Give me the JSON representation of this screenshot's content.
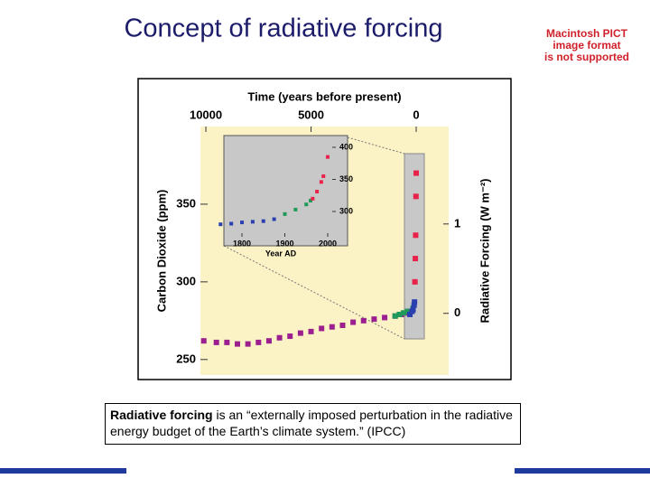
{
  "title": "Concept of radiative forcing",
  "placeholder": [
    "Macintosh PICT",
    "image format",
    "is not supported"
  ],
  "caption": {
    "bold": "Radiative forcing",
    "text": " is an “externally imposed perturbation in the radiative energy budget of the Earth’s climate system.” (IPCC)"
  },
  "chart_data": [
    {
      "type": "scatter",
      "x_label": "Time (years before present)",
      "y_label": "Carbon Dioxide (ppm)",
      "y2_label": "Radiative Forcing (W m⁻²)",
      "xlim": [
        10260,
        -1545
      ],
      "xticks": [
        10000,
        5000,
        0
      ],
      "ylim": [
        240,
        400
      ],
      "yticks": [
        250,
        300,
        350
      ],
      "y2lim": [
        -0.69,
        2.09
      ],
      "y2ticks": [
        0,
        1
      ],
      "series": [
        {
          "color": "#9b1f8f",
          "x": [
            10100,
            9500,
            9000,
            8500,
            8000,
            7500,
            7000,
            6500,
            6000,
            5500,
            5000,
            4500,
            4000,
            3500,
            3000,
            2500,
            2000,
            1500,
            1000,
            700,
            400,
            250
          ],
          "values": [
            262,
            261,
            261,
            260,
            260,
            261,
            262,
            264,
            265,
            267,
            268,
            270,
            271,
            272,
            274,
            275,
            276,
            277,
            278,
            279,
            280,
            281
          ]
        },
        {
          "color": "#1f9a5a",
          "x": [
            1000,
            800,
            600,
            400,
            300,
            200,
            150
          ],
          "values": [
            278,
            279,
            280,
            281,
            280,
            281,
            283
          ]
        },
        {
          "color": "#2a3fb0",
          "x": [
            300,
            200,
            150,
            100,
            80
          ],
          "values": [
            279,
            281,
            282,
            285,
            287
          ]
        },
        {
          "color": "#e8224a",
          "x": [
            60,
            40,
            25,
            10,
            0
          ],
          "values": [
            300,
            315,
            330,
            355,
            370
          ]
        }
      ]
    },
    {
      "type": "scatter",
      "x_label": "Year AD",
      "xlim": [
        1762,
        2019
      ],
      "xticks": [
        1800,
        1900,
        2000
      ],
      "ylim": [
        260.6,
        415.5
      ],
      "yticks": [
        300,
        350,
        400
      ],
      "series": [
        {
          "color": "#2a3fb0",
          "x": [
            1750,
            1775,
            1800,
            1825,
            1850,
            1875
          ],
          "values": [
            280,
            281,
            283,
            284,
            285,
            288
          ]
        },
        {
          "color": "#1f9a5a",
          "x": [
            1900,
            1925,
            1950,
            1960
          ],
          "values": [
            296,
            303,
            311,
            317
          ]
        },
        {
          "color": "#e8224a",
          "x": [
            1965,
            1975,
            1985,
            1990,
            2000
          ],
          "values": [
            320,
            331,
            346,
            355,
            385
          ]
        }
      ]
    }
  ]
}
